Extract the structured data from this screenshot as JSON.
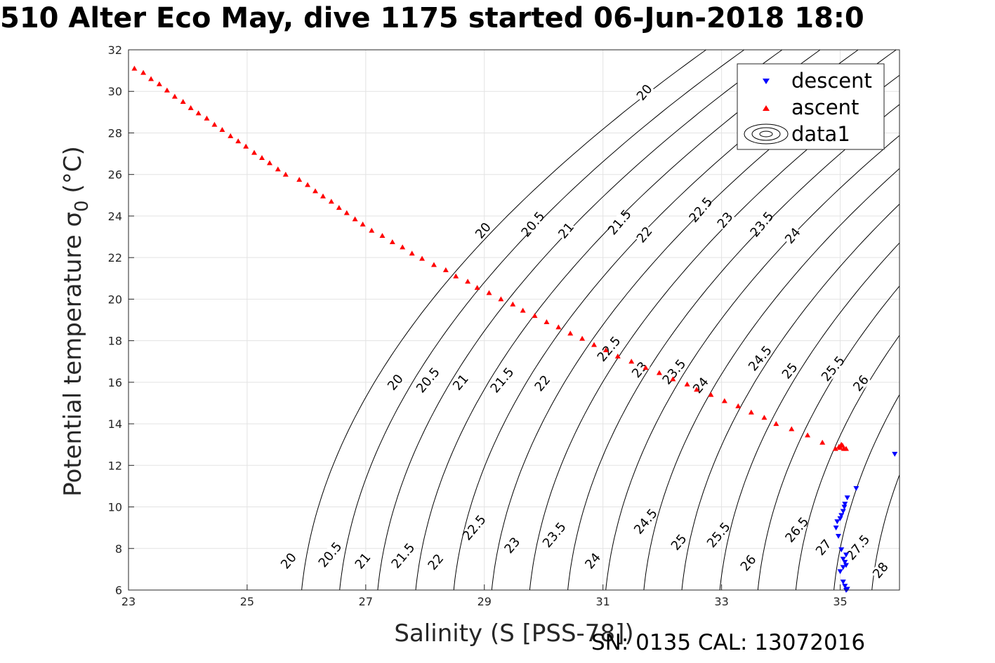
{
  "title": "510 Alter Eco May, dive 1175 started 06-Jun-2018 18:0",
  "footer": "SN: 0135  CAL: 13072016",
  "chart_data": {
    "type": "scatter",
    "xlabel": "Salinity (S [PSS-78])",
    "ylabel": "Potential temperature σ",
    "ylabel_sub": "0",
    "ylabel_unit": "(°C)",
    "xlim": [
      23,
      36
    ],
    "ylim": [
      6,
      32
    ],
    "xticks": [
      23,
      25,
      27,
      29,
      31,
      33,
      35
    ],
    "yticks": [
      6,
      8,
      10,
      12,
      14,
      16,
      18,
      20,
      22,
      24,
      26,
      28,
      30,
      32
    ],
    "grid": true,
    "legend_position": "top-right",
    "series": [
      {
        "name": "descent",
        "color": "#0000ff",
        "marker": "triangle-down",
        "points": [
          [
            35.1,
            6.0
          ],
          [
            35.12,
            6.05
          ],
          [
            35.08,
            6.2
          ],
          [
            35.05,
            6.4
          ],
          [
            35.0,
            6.9
          ],
          [
            35.05,
            7.1
          ],
          [
            35.1,
            7.2
          ],
          [
            35.08,
            7.35
          ],
          [
            35.05,
            7.5
          ],
          [
            35.1,
            7.7
          ],
          [
            35.02,
            7.95
          ],
          [
            34.97,
            8.6
          ],
          [
            34.93,
            9.0
          ],
          [
            34.95,
            9.3
          ],
          [
            35.0,
            9.45
          ],
          [
            35.02,
            9.6
          ],
          [
            35.05,
            9.8
          ],
          [
            35.07,
            10.0
          ],
          [
            35.08,
            10.15
          ],
          [
            35.12,
            10.45
          ],
          [
            35.27,
            10.9
          ],
          [
            35.92,
            12.55
          ]
        ]
      },
      {
        "name": "ascent",
        "color": "#ff0000",
        "marker": "triangle-up",
        "points": [
          [
            23.1,
            31.1
          ],
          [
            23.25,
            30.9
          ],
          [
            23.38,
            30.6
          ],
          [
            23.52,
            30.35
          ],
          [
            23.65,
            30.05
          ],
          [
            23.78,
            29.75
          ],
          [
            23.92,
            29.5
          ],
          [
            24.05,
            29.2
          ],
          [
            24.18,
            28.95
          ],
          [
            24.32,
            28.7
          ],
          [
            24.45,
            28.4
          ],
          [
            24.58,
            28.15
          ],
          [
            24.72,
            27.85
          ],
          [
            24.85,
            27.6
          ],
          [
            24.98,
            27.35
          ],
          [
            25.12,
            27.05
          ],
          [
            25.25,
            26.8
          ],
          [
            25.38,
            26.55
          ],
          [
            25.52,
            26.25
          ],
          [
            25.65,
            26.0
          ],
          [
            25.88,
            25.75
          ],
          [
            26.02,
            25.5
          ],
          [
            26.15,
            25.2
          ],
          [
            26.28,
            24.95
          ],
          [
            26.42,
            24.7
          ],
          [
            26.55,
            24.4
          ],
          [
            26.68,
            24.15
          ],
          [
            26.82,
            23.85
          ],
          [
            26.95,
            23.6
          ],
          [
            27.1,
            23.3
          ],
          [
            27.28,
            23.05
          ],
          [
            27.45,
            22.75
          ],
          [
            27.62,
            22.5
          ],
          [
            27.78,
            22.2
          ],
          [
            27.95,
            21.95
          ],
          [
            28.15,
            21.65
          ],
          [
            28.35,
            21.4
          ],
          [
            28.52,
            21.1
          ],
          [
            28.72,
            20.85
          ],
          [
            28.88,
            20.55
          ],
          [
            29.08,
            20.3
          ],
          [
            29.28,
            20.0
          ],
          [
            29.48,
            19.75
          ],
          [
            29.65,
            19.45
          ],
          [
            29.85,
            19.2
          ],
          [
            30.05,
            18.9
          ],
          [
            30.25,
            18.65
          ],
          [
            30.45,
            18.35
          ],
          [
            30.65,
            18.1
          ],
          [
            30.85,
            17.8
          ],
          [
            31.05,
            17.55
          ],
          [
            31.25,
            17.25
          ],
          [
            31.48,
            17.0
          ],
          [
            31.72,
            16.7
          ],
          [
            31.95,
            16.45
          ],
          [
            32.18,
            16.15
          ],
          [
            32.42,
            15.9
          ],
          [
            32.58,
            15.65
          ],
          [
            32.82,
            15.4
          ],
          [
            33.05,
            15.1
          ],
          [
            33.28,
            14.85
          ],
          [
            33.5,
            14.55
          ],
          [
            33.72,
            14.3
          ],
          [
            33.92,
            14.0
          ],
          [
            34.18,
            13.75
          ],
          [
            34.45,
            13.45
          ],
          [
            34.7,
            13.1
          ],
          [
            34.98,
            12.9
          ],
          [
            35.0,
            12.85
          ],
          [
            35.02,
            13.0
          ],
          [
            35.04,
            12.95
          ],
          [
            35.06,
            12.8
          ],
          [
            35.1,
            12.8
          ],
          [
            34.92,
            12.8
          ]
        ]
      }
    ],
    "contour_legend_label": "data1",
    "contour_levels": [
      "20",
      "20.5",
      "21",
      "21.5",
      "22",
      "22.5",
      "23",
      "23.5",
      "24",
      "24.5",
      "25",
      "25.5",
      "26",
      "26.5",
      "27",
      "27.5",
      "28"
    ],
    "contour_labels": [
      {
        "text": "20",
        "x": 25.7,
        "y": 7.4
      },
      {
        "text": "20.5",
        "x": 26.4,
        "y": 7.7
      },
      {
        "text": "21",
        "x": 26.95,
        "y": 7.4
      },
      {
        "text": "21.5",
        "x": 27.63,
        "y": 7.65
      },
      {
        "text": "22",
        "x": 28.18,
        "y": 7.35
      },
      {
        "text": "22.5",
        "x": 28.83,
        "y": 9.0
      },
      {
        "text": "23",
        "x": 29.47,
        "y": 8.15
      },
      {
        "text": "23.5",
        "x": 30.18,
        "y": 8.65
      },
      {
        "text": "24",
        "x": 30.83,
        "y": 7.4
      },
      {
        "text": "24.5",
        "x": 31.72,
        "y": 9.3
      },
      {
        "text": "25",
        "x": 32.28,
        "y": 8.3
      },
      {
        "text": "25.5",
        "x": 32.95,
        "y": 8.65
      },
      {
        "text": "26",
        "x": 33.45,
        "y": 7.3
      },
      {
        "text": "26.5",
        "x": 34.27,
        "y": 8.9
      },
      {
        "text": "27",
        "x": 34.72,
        "y": 8.05
      },
      {
        "text": "27.5",
        "x": 35.3,
        "y": 8.05
      },
      {
        "text": "28",
        "x": 35.68,
        "y": 6.95
      },
      {
        "text": "20",
        "x": 27.5,
        "y": 16.0
      },
      {
        "text": "20.5",
        "x": 28.05,
        "y": 16.1
      },
      {
        "text": "21",
        "x": 28.6,
        "y": 16.0
      },
      {
        "text": "21.5",
        "x": 29.3,
        "y": 16.1
      },
      {
        "text": "22",
        "x": 29.98,
        "y": 15.95
      },
      {
        "text": "22.5",
        "x": 31.1,
        "y": 17.6
      },
      {
        "text": "23",
        "x": 31.62,
        "y": 16.6
      },
      {
        "text": "23.5",
        "x": 32.2,
        "y": 16.5
      },
      {
        "text": "24",
        "x": 32.65,
        "y": 15.85
      },
      {
        "text": "24.5",
        "x": 33.65,
        "y": 17.15
      },
      {
        "text": "25",
        "x": 34.15,
        "y": 16.55
      },
      {
        "text": "25.5",
        "x": 34.88,
        "y": 16.65
      },
      {
        "text": "26",
        "x": 35.35,
        "y": 15.95
      },
      {
        "text": "20",
        "x": 28.98,
        "y": 23.3
      },
      {
        "text": "20.5",
        "x": 29.82,
        "y": 23.6
      },
      {
        "text": "21",
        "x": 30.38,
        "y": 23.3
      },
      {
        "text": "21.5",
        "x": 31.28,
        "y": 23.7
      },
      {
        "text": "22",
        "x": 31.7,
        "y": 23.1
      },
      {
        "text": "22.5",
        "x": 32.65,
        "y": 24.3
      },
      {
        "text": "23",
        "x": 33.06,
        "y": 23.8
      },
      {
        "text": "23.5",
        "x": 33.68,
        "y": 23.6
      },
      {
        "text": "24",
        "x": 34.2,
        "y": 23.05
      },
      {
        "text": "20",
        "x": 31.7,
        "y": 29.95
      }
    ],
    "legend": [
      "descent",
      "ascent",
      "data1"
    ]
  }
}
